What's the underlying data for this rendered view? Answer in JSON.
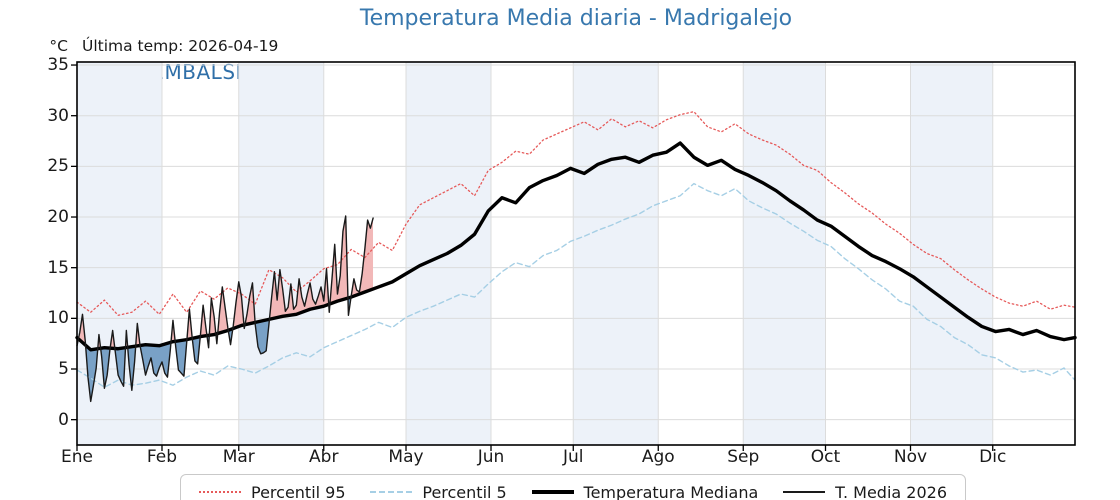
{
  "header": {
    "title": "Temperatura Media diaria - Madrigalejo",
    "unit_label": "°C",
    "last_temp_label": "Última temp: 2026-04-19",
    "watermark": "WWW.EMBALSES.NET"
  },
  "chart_data": {
    "type": "line",
    "title": "Temperatura Media diaria - Madrigalejo",
    "ylabel": "°C",
    "ylim": [
      -2.5,
      35.3
    ],
    "yticks": [
      0,
      5,
      10,
      15,
      20,
      25,
      30,
      35
    ],
    "grid": true,
    "legend_position": "bottom",
    "colors": {
      "band": "#edf2f9",
      "grid": "#dcdcdc",
      "fill_above": "#f2b8b8",
      "fill_below": "#79a1c6",
      "title": "#3878ae",
      "watermark": "#2f6fa8"
    },
    "months": [
      {
        "label": "Ene",
        "start": 1,
        "shaded": true
      },
      {
        "label": "Feb",
        "start": 32,
        "shaded": false
      },
      {
        "label": "Mar",
        "start": 60,
        "shaded": true
      },
      {
        "label": "Abr",
        "start": 91,
        "shaded": false
      },
      {
        "label": "May",
        "start": 121,
        "shaded": true
      },
      {
        "label": "Jun",
        "start": 152,
        "shaded": false
      },
      {
        "label": "Jul",
        "start": 182,
        "shaded": true
      },
      {
        "label": "Ago",
        "start": 213,
        "shaded": false
      },
      {
        "label": "Sep",
        "start": 244,
        "shaded": true
      },
      {
        "label": "Oct",
        "start": 274,
        "shaded": false
      },
      {
        "label": "Nov",
        "start": 305,
        "shaded": true
      },
      {
        "label": "Dic",
        "start": 335,
        "shaded": false
      }
    ],
    "sample_days": [
      1,
      6,
      11,
      16,
      21,
      26,
      31,
      36,
      41,
      46,
      51,
      56,
      61,
      66,
      71,
      76,
      81,
      86,
      91,
      96,
      101,
      106,
      111,
      116,
      121,
      126,
      131,
      136,
      141,
      146,
      151,
      156,
      161,
      166,
      171,
      176,
      181,
      186,
      191,
      196,
      201,
      206,
      211,
      216,
      221,
      226,
      231,
      236,
      241,
      246,
      251,
      256,
      261,
      266,
      271,
      276,
      281,
      286,
      291,
      296,
      301,
      306,
      311,
      316,
      321,
      326,
      331,
      336,
      341,
      346,
      351,
      356,
      361,
      365
    ],
    "series": [
      {
        "name": "Percentil 95",
        "style": "dotted",
        "color": "#e65a5a",
        "width": 1.3,
        "values": [
          11.6,
          10.6,
          11.8,
          10.3,
          10.6,
          11.7,
          10.4,
          12.4,
          10.6,
          12.7,
          11.9,
          13.0,
          12.4,
          11.4,
          14.8,
          14.0,
          12.6,
          13.7,
          14.9,
          15.3,
          16.8,
          16.0,
          17.5,
          16.7,
          19.3,
          21.2,
          21.9,
          22.6,
          23.3,
          22.1,
          24.6,
          25.4,
          26.5,
          26.2,
          27.6,
          28.2,
          28.8,
          29.4,
          28.6,
          29.7,
          28.9,
          29.5,
          28.8,
          29.6,
          30.1,
          30.4,
          28.9,
          28.4,
          29.2,
          28.2,
          27.6,
          27.1,
          26.2,
          25.1,
          24.6,
          23.4,
          22.4,
          21.3,
          20.4,
          19.3,
          18.4,
          17.3,
          16.4,
          15.9,
          14.8,
          13.8,
          12.9,
          12.1,
          11.5,
          11.2,
          11.7,
          10.9,
          11.3,
          11.1
        ]
      },
      {
        "name": "Percentil 5",
        "style": "dashed",
        "color": "#a6cfe5",
        "width": 1.4,
        "values": [
          4.9,
          4.1,
          3.2,
          3.9,
          3.4,
          3.6,
          3.9,
          3.4,
          4.2,
          4.8,
          4.4,
          5.3,
          5.0,
          4.6,
          5.3,
          6.1,
          6.6,
          6.2,
          7.1,
          7.7,
          8.3,
          8.9,
          9.6,
          9.1,
          10.1,
          10.7,
          11.2,
          11.8,
          12.4,
          12.1,
          13.4,
          14.6,
          15.5,
          15.1,
          16.2,
          16.7,
          17.6,
          18.1,
          18.7,
          19.2,
          19.8,
          20.3,
          21.1,
          21.6,
          22.1,
          23.3,
          22.6,
          22.1,
          22.8,
          21.6,
          20.9,
          20.3,
          19.4,
          18.6,
          17.7,
          17.1,
          15.9,
          14.9,
          13.8,
          12.9,
          11.7,
          11.2,
          9.9,
          9.2,
          8.1,
          7.4,
          6.4,
          6.1,
          5.3,
          4.7,
          4.9,
          4.4,
          5.1,
          3.9
        ]
      },
      {
        "name": "Temperatura Mediana",
        "style": "solid",
        "color": "#000000",
        "width": 3.4,
        "values": [
          8.1,
          6.9,
          7.1,
          7.0,
          7.2,
          7.4,
          7.3,
          7.7,
          7.9,
          8.2,
          8.4,
          8.8,
          9.3,
          9.6,
          9.9,
          10.2,
          10.4,
          10.9,
          11.2,
          11.7,
          12.1,
          12.6,
          13.1,
          13.6,
          14.4,
          15.2,
          15.8,
          16.4,
          17.2,
          18.3,
          20.6,
          21.9,
          21.4,
          22.9,
          23.6,
          24.1,
          24.8,
          24.3,
          25.2,
          25.7,
          25.9,
          25.4,
          26.1,
          26.4,
          27.3,
          25.9,
          25.1,
          25.6,
          24.7,
          24.1,
          23.4,
          22.6,
          21.6,
          20.7,
          19.7,
          19.1,
          18.1,
          17.1,
          16.2,
          15.6,
          14.9,
          14.1,
          13.1,
          12.1,
          11.1,
          10.1,
          9.2,
          8.7,
          8.9,
          8.4,
          8.8,
          8.2,
          7.9,
          8.1
        ]
      },
      {
        "name": "T. Media 2026",
        "style": "solid",
        "color": "#1a1a1a",
        "width": 1.4,
        "start_day": 1,
        "values": [
          7.3,
          8.6,
          10.4,
          7.8,
          4.2,
          1.8,
          3.4,
          5.1,
          8.4,
          6.2,
          3.1,
          4.4,
          6.9,
          8.8,
          6.6,
          4.4,
          3.8,
          3.3,
          8.8,
          5.4,
          2.9,
          5.7,
          9.5,
          7.3,
          5.9,
          4.4,
          5.3,
          6.1,
          4.6,
          4.3,
          5.1,
          5.7,
          4.6,
          4.2,
          6.8,
          9.8,
          7.2,
          4.9,
          4.6,
          4.3,
          7.6,
          10.9,
          8.1,
          5.8,
          5.5,
          8.3,
          11.3,
          9.1,
          7.1,
          12.0,
          10.2,
          7.5,
          10.6,
          13.1,
          11.1,
          9.1,
          7.4,
          9.3,
          11.6,
          13.6,
          12.1,
          9.0,
          10.4,
          12.2,
          13.5,
          9.4,
          7.2,
          6.5,
          6.6,
          6.8,
          9.4,
          12.1,
          14.6,
          11.8,
          14.8,
          12.9,
          10.7,
          11.1,
          13.4,
          10.9,
          11.3,
          13.9,
          12.1,
          11.2,
          12.4,
          13.5,
          11.9,
          11.4,
          12.2,
          13.1,
          11.7,
          14.9,
          10.6,
          13.9,
          17.3,
          12.4,
          14.2,
          18.6,
          20.1,
          10.3,
          12.2,
          13.9,
          12.8,
          12.6,
          14.4,
          16.9,
          19.7,
          18.9,
          19.9
        ]
      }
    ]
  }
}
